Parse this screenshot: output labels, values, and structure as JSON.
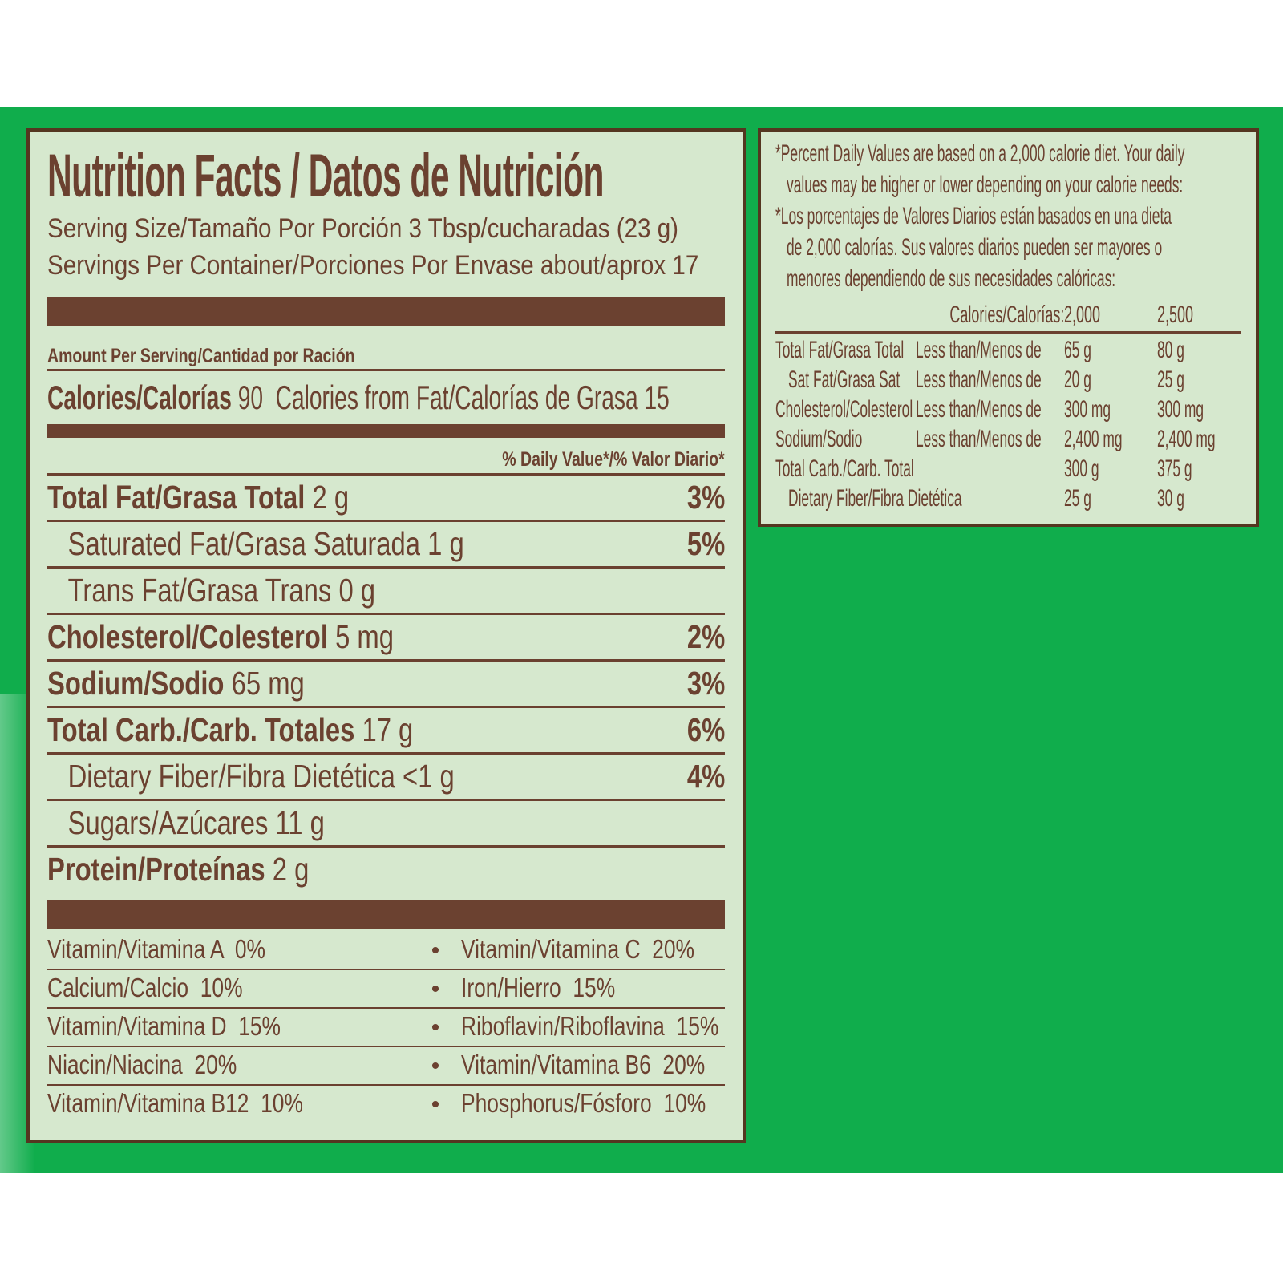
{
  "colors": {
    "background_green": "#10ad4c",
    "label_background": "#d6e8ce",
    "text_brown": "#6b4130",
    "border_brown": "#543620"
  },
  "label_panel": {
    "title": "Nutrition Facts / Datos de Nutrición",
    "serving_size_line": "Serving Size/Tamaño Por Porción 3 Tbsp/cucharadas (23 g)",
    "servings_line": "Servings Per Container/Porciones Por Envase about/aprox 17",
    "amount_header": "Amount Per Serving/Cantidad por Ración",
    "calories_label": "Calories/Calorías",
    "calories_value": "90",
    "calories_from_fat_label": "Calories from Fat/Calorías de Grasa",
    "calories_from_fat_value": "15",
    "daily_value_header": "% Daily Value*/% Valor Diario*",
    "nutrients": [
      {
        "name": "Total Fat/Grasa Total",
        "amount": "2 g",
        "dv": "3%"
      },
      {
        "name": "Saturated Fat/Grasa Saturada",
        "amount": "1 g",
        "dv": "5%"
      },
      {
        "name": "Trans Fat/Grasa Trans",
        "amount": "0 g",
        "dv": ""
      },
      {
        "name": "Cholesterol/Colesterol",
        "amount": "5 mg",
        "dv": "2%"
      },
      {
        "name": "Sodium/Sodio",
        "amount": "65 mg",
        "dv": "3%"
      },
      {
        "name": "Total Carb./Carb. Totales",
        "amount": "17 g",
        "dv": "6%"
      },
      {
        "name": "Dietary Fiber/Fibra Dietética",
        "amount": "<1 g",
        "dv": "4%"
      },
      {
        "name": "Sugars/Azúcares",
        "amount": "11 g",
        "dv": ""
      },
      {
        "name": "Protein/Proteínas",
        "amount": "2 g",
        "dv": ""
      }
    ],
    "vitamin_bullet": "•",
    "vitamins": [
      {
        "left": "Vitamin/Vitamina A  0%",
        "right": "Vitamin/Vitamina C  20%"
      },
      {
        "left": "Calcium/Calcio  10%",
        "right": "Iron/Hierro  15%"
      },
      {
        "left": "Vitamin/Vitamina D  15%",
        "right": "Riboflavin/Riboflavina  15%"
      },
      {
        "left": "Niacin/Niacina  20%",
        "right": "Vitamin/Vitamina B6  20%"
      },
      {
        "left": "Vitamin/Vitamina B12  10%",
        "right": "Phosphorus/Fósforo  10%"
      }
    ]
  },
  "footnote_panel": {
    "footnote_lines": [
      "*Percent Daily Values are based on a 2,000 calorie diet. Your daily",
      "values may be higher or lower depending on your calorie needs:",
      "*Los porcentajes de Valores Diarios están basados en una dieta",
      "de 2,000 calorías. Sus valores diarios pueden ser mayores o",
      "menores dependiendo de sus necesidades calóricas:"
    ],
    "table": {
      "header_label": "Calories/Calorías:",
      "col_2000": "2,000",
      "col_2500": "2,500",
      "rows": [
        {
          "name": "Total Fat/Grasa Total",
          "condition": "Less than/Menos de",
          "v2000": "65 g",
          "v2500": "80 g"
        },
        {
          "name": "Sat Fat/Grasa Sat",
          "condition": "Less than/Menos de",
          "v2000": "20 g",
          "v2500": "25 g"
        },
        {
          "name": "Cholesterol/Colesterol",
          "condition": "Less than/Menos de",
          "v2000": "300 mg",
          "v2500": "300 mg"
        },
        {
          "name": "Sodium/Sodio",
          "condition": "Less than/Menos de",
          "v2000": "2,400 mg",
          "v2500": "2,400 mg"
        },
        {
          "name": "Total Carb./Carb. Total",
          "condition": "",
          "v2000": "300 g",
          "v2500": "375 g"
        },
        {
          "name": "Dietary Fiber/Fibra Dietética",
          "condition": "",
          "v2000": "25 g",
          "v2500": "30 g"
        }
      ]
    }
  }
}
